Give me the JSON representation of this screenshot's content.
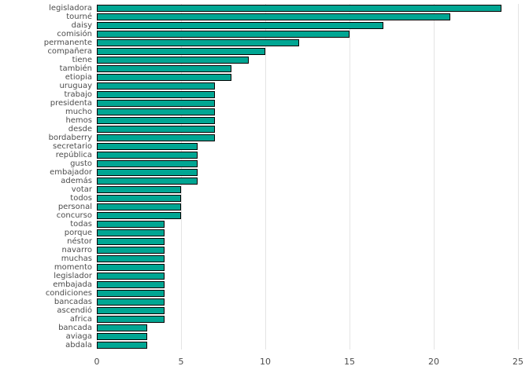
{
  "chart_data": {
    "type": "bar",
    "orientation": "horizontal",
    "title": "",
    "xlabel": "",
    "ylabel": "",
    "xlim": [
      0,
      25
    ],
    "x_ticks": [
      0,
      5,
      10,
      15,
      20,
      25
    ],
    "grid": true,
    "legend": false,
    "bar_color": "#00A693",
    "bar_border_color": "#000000",
    "gridline_color": "#e4e4e4",
    "categories": [
      "legisladora",
      "tourné",
      "daisy",
      "comisión",
      "permanente",
      "compañera",
      "tiene",
      "también",
      "etiopia",
      "uruguay",
      "trabajo",
      "presidenta",
      "mucho",
      "hemos",
      "desde",
      "bordaberry",
      "secretario",
      "república",
      "gusto",
      "embajador",
      "además",
      "votar",
      "todos",
      "personal",
      "concurso",
      "todas",
      "porque",
      "néstor",
      "navarro",
      "muchas",
      "momento",
      "legislador",
      "embajada",
      "condiciones",
      "bancadas",
      "ascendió",
      "africa",
      "bancada",
      "aviaga",
      "abdala"
    ],
    "values": [
      24,
      21,
      17,
      15,
      12,
      10,
      9,
      8,
      8,
      7,
      7,
      7,
      7,
      7,
      7,
      7,
      6,
      6,
      6,
      6,
      6,
      5,
      5,
      5,
      5,
      4,
      4,
      4,
      4,
      4,
      4,
      4,
      4,
      4,
      4,
      4,
      4,
      3,
      3,
      3
    ]
  }
}
